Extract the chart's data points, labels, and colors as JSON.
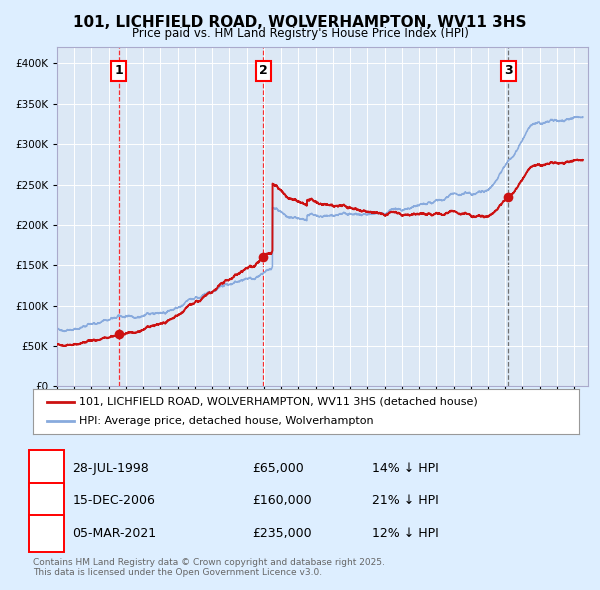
{
  "title1": "101, LICHFIELD ROAD, WOLVERHAMPTON, WV11 3HS",
  "title2": "Price paid vs. HM Land Registry's House Price Index (HPI)",
  "legend_label_red": "101, LICHFIELD ROAD, WOLVERHAMPTON, WV11 3HS (detached house)",
  "legend_label_blue": "HPI: Average price, detached house, Wolverhampton",
  "sale1_date": "28-JUL-1998",
  "sale1_year": 1998.57,
  "sale1_price": 65000,
  "sale1_hpi_pct": "14%",
  "sale2_date": "15-DEC-2006",
  "sale2_year": 2006.96,
  "sale2_price": 160000,
  "sale2_hpi_pct": "21%",
  "sale3_date": "05-MAR-2021",
  "sale3_year": 2021.18,
  "sale3_price": 235000,
  "sale3_hpi_pct": "12%",
  "footer": "Contains HM Land Registry data © Crown copyright and database right 2025.\nThis data is licensed under the Open Government Licence v3.0.",
  "bg_color": "#ddeeff",
  "plot_bg_color": "#dce8f5",
  "red_color": "#cc1111",
  "blue_color": "#88aadd",
  "ylim_max": 420000,
  "ytick_step": 50000
}
